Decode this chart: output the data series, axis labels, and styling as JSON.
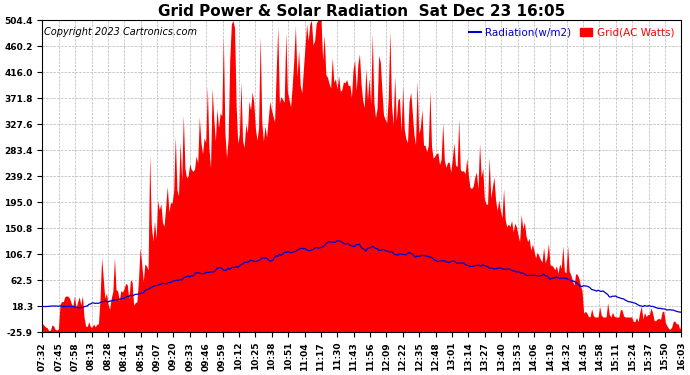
{
  "title": "Grid Power & Solar Radiation  Sat Dec 23 16:05",
  "copyright": "Copyright 2023 Cartronics.com",
  "legend_radiation": "Radiation(w/m2)",
  "legend_grid": "Grid(AC Watts)",
  "background_color": "#ffffff",
  "plot_bg_color": "#ffffff",
  "grid_color": "#b0b0b0",
  "radiation_color": "#0000cc",
  "grid_fill_color": "#ff0000",
  "yticks": [
    504.4,
    460.2,
    416.0,
    371.8,
    327.6,
    283.4,
    239.2,
    195.0,
    150.8,
    106.7,
    62.5,
    18.3,
    -25.9
  ],
  "ymin": -25.9,
  "ymax": 504.4,
  "xtick_labels": [
    "07:32",
    "07:45",
    "07:58",
    "08:13",
    "08:28",
    "08:41",
    "08:54",
    "09:07",
    "09:20",
    "09:33",
    "09:46",
    "09:59",
    "10:12",
    "10:25",
    "10:38",
    "10:51",
    "11:04",
    "11:17",
    "11:30",
    "11:43",
    "11:56",
    "12:09",
    "12:22",
    "12:35",
    "12:48",
    "13:01",
    "13:14",
    "13:27",
    "13:40",
    "13:53",
    "14:06",
    "14:19",
    "14:32",
    "14:45",
    "14:58",
    "15:11",
    "15:24",
    "15:37",
    "15:50",
    "16:03"
  ],
  "title_fontsize": 11,
  "tick_fontsize": 6.5,
  "copyright_fontsize": 7,
  "legend_fontsize": 7.5
}
